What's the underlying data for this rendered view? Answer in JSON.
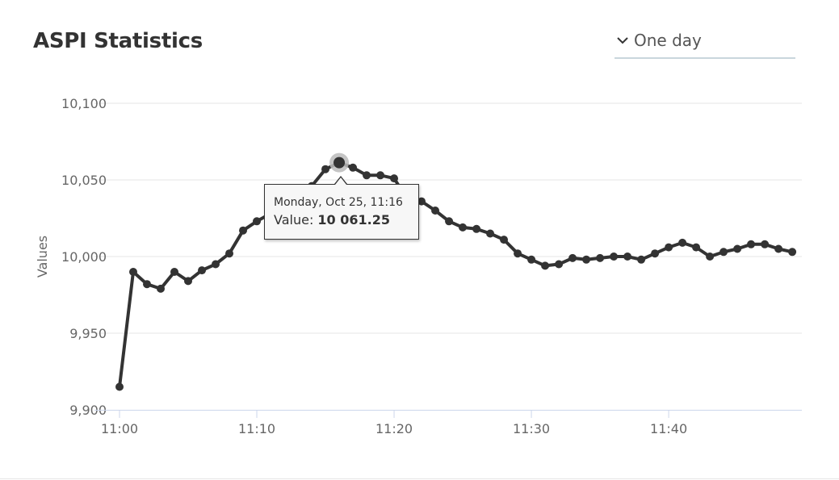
{
  "header": {
    "title": "ASPI Statistics",
    "range_select": {
      "value": "One day",
      "icon": "chevron-down-icon"
    }
  },
  "tooltip": {
    "date": "Monday, Oct 25, 11:16",
    "value_label": "Value:",
    "value": "10 061.25"
  },
  "colors": {
    "series": "#333333",
    "grid": "#e6e6e6",
    "axis": "#ccd6eb",
    "hover": "#bbbbbb"
  },
  "chart_data": {
    "type": "line",
    "title": "",
    "xlabel": "",
    "ylabel": "Values",
    "ylim": [
      9900,
      10100
    ],
    "yticks": [
      "9,900",
      "9,950",
      "10,000",
      "10,050",
      "10,100"
    ],
    "ytick_values": [
      9900,
      9950,
      10000,
      10050,
      10100
    ],
    "xticks": [
      "11:00",
      "11:10",
      "11:20",
      "11:30",
      "11:40"
    ],
    "xtick_values": [
      0,
      10,
      20,
      30,
      40
    ],
    "xlim": [
      0,
      49.7
    ],
    "grid": true,
    "legend": "none",
    "highlight_index": 16,
    "series": [
      {
        "x": [
          "11:00",
          "11:01",
          "11:02",
          "11:03",
          "11:04",
          "11:05",
          "11:06",
          "11:07",
          "11:08",
          "11:09",
          "11:10",
          "11:11",
          "11:12",
          "11:13",
          "11:14",
          "11:15",
          "11:16",
          "11:17",
          "11:18",
          "11:19",
          "11:20",
          "11:21",
          "11:22",
          "11:23",
          "11:24",
          "11:25",
          "11:26",
          "11:27",
          "11:28",
          "11:29",
          "11:30",
          "11:31",
          "11:32",
          "11:33",
          "11:34",
          "11:35",
          "11:36",
          "11:37",
          "11:38",
          "11:39",
          "11:40",
          "11:41",
          "11:42",
          "11:43",
          "11:44",
          "11:45",
          "11:46",
          "11:47",
          "11:48",
          "11:49"
        ],
        "values": [
          9915,
          9990,
          9982,
          9979,
          9990,
          9984,
          9991,
          9995,
          10002,
          10017,
          10023,
          10028,
          10032,
          10039,
          10046,
          10057,
          10061.25,
          10058,
          10053,
          10053,
          10051,
          10037,
          10036,
          10030,
          10023,
          10019,
          10018,
          10015,
          10011,
          10002,
          9998,
          9994,
          9995,
          9999,
          9998,
          9999,
          10000,
          10000,
          9998,
          10002,
          10006,
          10009,
          10006,
          10000,
          10003,
          10005,
          10008,
          10008,
          10005,
          10003
        ]
      }
    ]
  }
}
